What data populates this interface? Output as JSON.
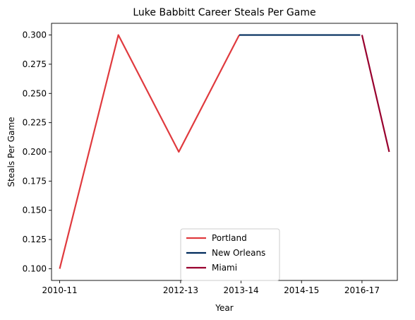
{
  "chart_data": {
    "type": "line",
    "title": "Luke Babbitt Career Steals Per Game",
    "xlabel": "Year",
    "ylabel": "Steals Per Game",
    "x_tick_labels": [
      "2010-11",
      "2012-13",
      "2013-14",
      "2014-15",
      "2016-17"
    ],
    "x_tick_positions": [
      0,
      2,
      3,
      4,
      5
    ],
    "xlim": [
      -0.135,
      5.585
    ],
    "ylim": [
      0.09,
      0.31
    ],
    "y_ticks": [
      0.1,
      0.125,
      0.15,
      0.175,
      0.2,
      0.225,
      0.25,
      0.275,
      0.3
    ],
    "y_tick_labels": [
      "0.100",
      "0.125",
      "0.150",
      "0.175",
      "0.200",
      "0.225",
      "0.250",
      "0.275",
      "0.300"
    ],
    "grid": false,
    "legend_position": "lower-center",
    "series": [
      {
        "name": "Portland",
        "color": "#E03A3E",
        "points": [
          [
            0,
            0.1
          ],
          [
            0.97,
            0.3
          ],
          [
            1.97,
            0.2
          ],
          [
            2.97,
            0.3
          ]
        ]
      },
      {
        "name": "New Orleans",
        "color": "#002B5C",
        "points": [
          [
            2.97,
            0.3
          ],
          [
            3.97,
            0.3
          ],
          [
            4.97,
            0.3
          ]
        ]
      },
      {
        "name": "Miami",
        "color": "#98002E",
        "points": [
          [
            5.0,
            0.3
          ],
          [
            5.45,
            0.2
          ]
        ]
      }
    ]
  }
}
